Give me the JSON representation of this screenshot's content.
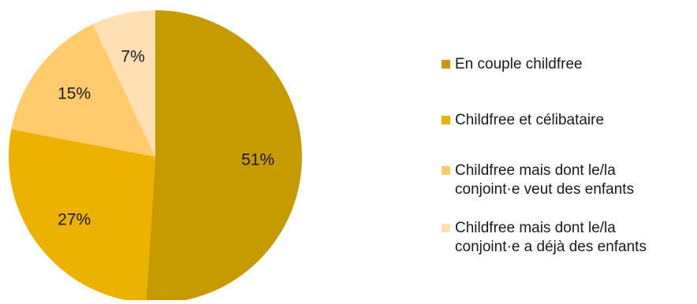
{
  "chart_data": {
    "type": "pie",
    "title": "",
    "slices": [
      {
        "label": "En couple childfree",
        "value": 51,
        "display": "51%",
        "color": "#C79A00"
      },
      {
        "label": "Childfree et célibataire",
        "value": 27,
        "display": "27%",
        "color": "#EDB100"
      },
      {
        "label": "Childfree mais dont le/la\nconjoint·e veut des enfants",
        "value": 15,
        "display": "15%",
        "color": "#FFCB6B"
      },
      {
        "label": "Childfree mais dont le/la\nconjoint·e a déjà des enfants",
        "value": 7,
        "display": "7%",
        "color": "#FFDFB3"
      }
    ],
    "legend_position": "right",
    "start_angle": "12 o'clock",
    "direction": "clockwise"
  }
}
